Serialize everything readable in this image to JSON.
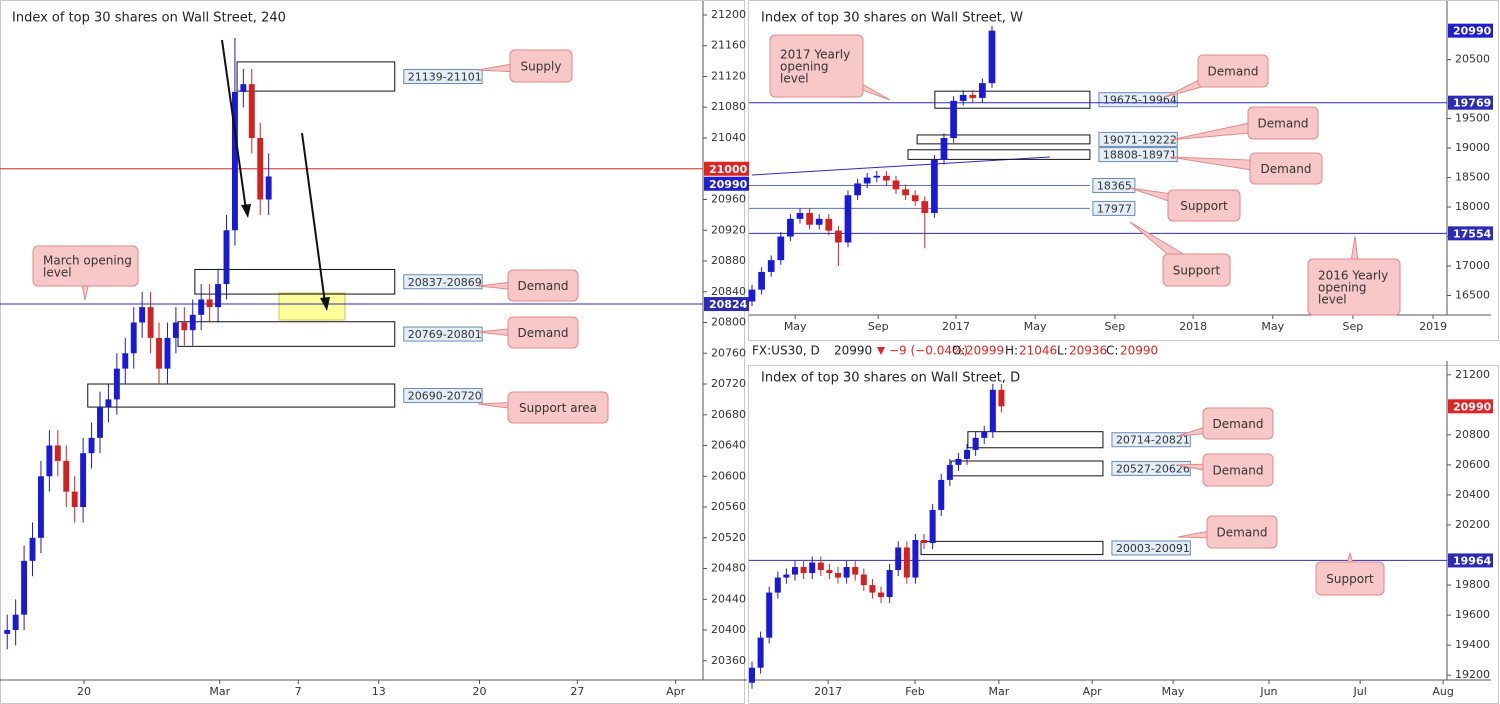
{
  "chart_data": [
    {
      "type": "candlestick",
      "title": "Index of top 30 shares on Wall Street, 240",
      "x": [
        1,
        3,
        5,
        7,
        9,
        11,
        13,
        15,
        17,
        19,
        21,
        23,
        25,
        27,
        29,
        31,
        33,
        35,
        37,
        39,
        41,
        43,
        45,
        47,
        49,
        51,
        53,
        55,
        57,
        59,
        61,
        63
      ],
      "open": [
        20395,
        20400,
        20420,
        20490,
        20520,
        20600,
        20640,
        20620,
        20580,
        20560,
        20630,
        20650,
        20690,
        20700,
        20740,
        20760,
        20800,
        20820,
        20780,
        20740,
        20780,
        20800,
        20790,
        20810,
        20830,
        20820,
        20850,
        20920,
        21100,
        21110,
        21040,
        20960
      ],
      "high": [
        20420,
        20440,
        20510,
        20540,
        20620,
        20660,
        20660,
        20640,
        20600,
        20650,
        20670,
        20710,
        20720,
        20760,
        20780,
        20820,
        20840,
        20840,
        20800,
        20800,
        20820,
        20820,
        20830,
        20850,
        20850,
        20870,
        20940,
        21170,
        21130,
        21130,
        21060,
        21020
      ],
      "low": [
        20375,
        20380,
        20400,
        20470,
        20500,
        20580,
        20600,
        20560,
        20540,
        20540,
        20610,
        20630,
        20670,
        20680,
        20720,
        20740,
        20780,
        20760,
        20720,
        20720,
        20760,
        20770,
        20770,
        20790,
        20800,
        20800,
        20830,
        20900,
        21080,
        21020,
        20940,
        20940
      ],
      "close": [
        20400,
        20420,
        20490,
        20520,
        20600,
        20640,
        20620,
        20580,
        20560,
        20630,
        20650,
        20690,
        20700,
        20740,
        20760,
        20800,
        20820,
        20780,
        20740,
        20780,
        20800,
        20790,
        20810,
        20830,
        20820,
        20850,
        20920,
        21100,
        21110,
        21040,
        20960,
        20990
      ],
      "up_color": "#1a1ad6",
      "down_color": "#d32020",
      "xlim": [
        0,
        166
      ],
      "xticks": [
        {
          "value": 19.2,
          "label": "20"
        },
        {
          "value": 51.4,
          "label": "Mar"
        },
        {
          "value": 70,
          "label": "7"
        },
        {
          "value": 89.1,
          "label": "13"
        },
        {
          "value": 113,
          "label": "20"
        },
        {
          "value": 136.2,
          "label": "27"
        },
        {
          "value": 159.5,
          "label": "Apr"
        }
      ],
      "ylim": [
        20335,
        21213
      ],
      "yticks": [
        20360,
        20400,
        20440,
        20480,
        20520,
        20560,
        20600,
        20640,
        20680,
        20720,
        20760,
        20800,
        20840,
        20880,
        20920,
        20960,
        21040,
        21080,
        21120,
        21160,
        21200
      ],
      "zones": [
        {
          "label": "21139-21101",
          "low": 21101,
          "high": 21139,
          "from": 55.5,
          "to": 92.9
        },
        {
          "label": "20837-20869",
          "low": 20837,
          "high": 20869,
          "from": 45.5,
          "to": 92.9
        },
        {
          "label": "20769-20801",
          "low": 20769,
          "high": 20801,
          "from": 41.5,
          "to": 92.9
        },
        {
          "label": "20690-20720",
          "low": 20690,
          "high": 20720,
          "from": 20.1,
          "to": 92.9
        }
      ],
      "levels": [
        {
          "value": 21000,
          "color": "#e02424",
          "line": true,
          "axis_label": true
        },
        {
          "value": 20990,
          "color": "#1f1fd0",
          "line": false,
          "axis_label": true
        },
        {
          "value": 20824,
          "color": "#2b2bb8",
          "line": true,
          "axis_label": true
        }
      ],
      "callouts": [
        {
          "text": [
            "Supply"
          ]
        },
        {
          "text": [
            "Demand"
          ]
        },
        {
          "text": [
            "Demand"
          ]
        },
        {
          "text": [
            "Support area"
          ]
        },
        {
          "text": [
            "March opening",
            "level"
          ]
        }
      ]
    },
    {
      "type": "candlestick",
      "title": "Index of top 30 shares on Wall Street, W",
      "x": [
        0,
        2,
        4,
        6,
        8,
        10,
        12,
        14,
        16,
        18,
        20,
        22,
        24,
        26,
        28,
        30,
        32,
        34,
        36,
        38,
        40,
        42,
        44,
        46,
        48,
        50
      ],
      "open": [
        16400,
        16600,
        16900,
        17100,
        17500,
        17800,
        17900,
        17700,
        17800,
        17600,
        17400,
        18200,
        18400,
        18500,
        18530,
        18450,
        18300,
        18200,
        18100,
        17900,
        18800,
        19170,
        19800,
        19900,
        19850,
        20100
      ],
      "high": [
        16680,
        16980,
        17180,
        17580,
        17880,
        17980,
        17980,
        17880,
        17880,
        17680,
        18280,
        18480,
        18580,
        18610,
        18610,
        18530,
        18380,
        18280,
        18180,
        18880,
        19250,
        19880,
        19980,
        19980,
        20180,
        21070
      ],
      "low": [
        16320,
        16520,
        16820,
        17020,
        17420,
        17720,
        17620,
        17620,
        17520,
        17000,
        17320,
        18120,
        18320,
        18420,
        18370,
        18220,
        18120,
        18020,
        17300,
        17820,
        18720,
        19090,
        19720,
        19770,
        19770,
        20020
      ],
      "close": [
        16600,
        16900,
        17100,
        17500,
        17800,
        17900,
        17700,
        17800,
        17600,
        17400,
        18200,
        18400,
        18500,
        18530,
        18450,
        18300,
        18200,
        18100,
        17900,
        18800,
        19170,
        19800,
        19900,
        19850,
        20100,
        20990
      ],
      "up_color": "#1a1ad6",
      "down_color": "#d32020",
      "xlim": [
        0,
        144.8
      ],
      "xticks": [
        {
          "value": 9,
          "label": "May"
        },
        {
          "value": 26.3,
          "label": "Sep"
        },
        {
          "value": 42.5,
          "label": "2017"
        },
        {
          "value": 59,
          "label": "May"
        },
        {
          "value": 75.6,
          "label": "Sep"
        },
        {
          "value": 91.9,
          "label": "2018"
        },
        {
          "value": 108.5,
          "label": "May"
        },
        {
          "value": 125.2,
          "label": "Sep"
        },
        {
          "value": 141.9,
          "label": "2019"
        }
      ],
      "ylim": [
        16170,
        21425
      ],
      "yticks": [
        16500,
        17000,
        17500,
        18000,
        18500,
        19000,
        19500,
        20500
      ],
      "zones": [
        {
          "label": "19675-19964",
          "low": 19675,
          "high": 19964,
          "from": 38.1,
          "to": 70.4
        },
        {
          "label": "19071-19222",
          "low": 19071,
          "high": 19222,
          "from": 34.4,
          "to": 70.4
        },
        {
          "label": "18808-18971",
          "low": 18808,
          "high": 18971,
          "from": 32.5,
          "to": 70.4
        }
      ],
      "levels": [
        {
          "value": 20990,
          "color": "#1f1fd0",
          "line": false,
          "axis_label": true
        },
        {
          "value": 19769,
          "color": "#2b2bb8",
          "line": true,
          "axis_label": true
        },
        {
          "value": 18365,
          "color": "#5a6fd8",
          "line": true,
          "to": 70.4,
          "boxed": true
        },
        {
          "value": 17977,
          "color": "#5a6fd8",
          "line": true,
          "to": 70.4,
          "boxed": true
        },
        {
          "value": 17554,
          "color": "#2b2bb8",
          "line": true,
          "axis_label": true
        }
      ],
      "callouts": [
        {
          "text": [
            "2017 Yearly",
            "opening",
            "level"
          ]
        },
        {
          "text": [
            "Demand"
          ]
        },
        {
          "text": [
            "Demand"
          ]
        },
        {
          "text": [
            "Demand"
          ]
        },
        {
          "text": [
            "Support"
          ]
        },
        {
          "text": [
            "Support"
          ]
        },
        {
          "text": [
            "2016 Yearly",
            "opening",
            "level"
          ]
        }
      ]
    },
    {
      "type": "candlestick",
      "title": "Index of top 30 shares on Wall Street, D",
      "header": {
        "symbol": "FX:US30, D",
        "last": 20990,
        "change": "−9 (−0.04%)",
        "o_label": "O:",
        "o": 20999,
        "h_label": "H:",
        "h": 21046,
        "l_label": "L:",
        "l": 20936,
        "c_label": "C:",
        "c": 20990
      },
      "x": [
        0,
        2,
        4,
        6,
        8,
        10,
        12,
        14,
        16,
        18,
        20,
        22,
        24,
        26,
        28,
        30,
        32,
        34,
        36,
        38,
        40,
        42,
        44,
        46,
        48,
        50,
        52,
        54,
        56,
        58
      ],
      "open": [
        19150,
        19250,
        19450,
        19750,
        19850,
        19870,
        19920,
        19880,
        19950,
        19900,
        19880,
        19850,
        19920,
        19870,
        19800,
        19750,
        19720,
        19900,
        20050,
        19850,
        20100,
        20080,
        20300,
        20500,
        20600,
        20640,
        20700,
        20780,
        20820,
        21100
      ],
      "high": [
        19290,
        19490,
        19790,
        19890,
        19910,
        19960,
        19960,
        19990,
        19990,
        19940,
        19920,
        19960,
        19960,
        19910,
        19840,
        19790,
        19940,
        20090,
        20090,
        20140,
        20140,
        20340,
        20540,
        20640,
        20680,
        20740,
        20820,
        20860,
        21140,
        21140
      ],
      "low": [
        19110,
        19210,
        19410,
        19710,
        19810,
        19830,
        19840,
        19840,
        19860,
        19840,
        19810,
        19810,
        19830,
        19760,
        19710,
        19680,
        19680,
        19860,
        19810,
        19810,
        20040,
        20040,
        20260,
        20460,
        20560,
        20600,
        20660,
        20740,
        20780,
        20950
      ],
      "close": [
        19250,
        19450,
        19750,
        19850,
        19870,
        19920,
        19880,
        19950,
        19900,
        19880,
        19850,
        19920,
        19870,
        19800,
        19750,
        19720,
        19900,
        20050,
        19850,
        20100,
        20080,
        20300,
        20500,
        20600,
        20640,
        20700,
        20780,
        20820,
        21100,
        20990
      ],
      "up_color": "#1a1ad6",
      "down_color": "#d32020",
      "xlim": [
        0,
        161.6
      ],
      "xticks": [
        {
          "value": 17.7,
          "label": "2017"
        },
        {
          "value": 37.9,
          "label": "Feb"
        },
        {
          "value": 57.4,
          "label": "Mar"
        },
        {
          "value": 79.1,
          "label": "Apr"
        },
        {
          "value": 97.9,
          "label": "May"
        },
        {
          "value": 120.2,
          "label": "Jun"
        },
        {
          "value": 141.4,
          "label": "Jul"
        },
        {
          "value": 160.7,
          "label": "Aug"
        }
      ],
      "ylim": [
        19168,
        21265
      ],
      "yticks": [
        19200,
        19400,
        19600,
        19800,
        20200,
        20400,
        20600,
        20800,
        21200
      ],
      "zones": [
        {
          "label": "20714-20821",
          "low": 20714,
          "high": 20821,
          "from": 50.2,
          "to": 81.6
        },
        {
          "label": "20527-20626",
          "low": 20527,
          "high": 20626,
          "from": 46.3,
          "to": 81.6
        },
        {
          "label": "20003-20091",
          "low": 20003,
          "high": 20091,
          "from": 39.3,
          "to": 81.6
        }
      ],
      "levels": [
        {
          "value": 20990,
          "color": "#e02424",
          "line": false,
          "axis_label": true
        },
        {
          "value": 19964,
          "color": "#2b2bb8",
          "line": true,
          "axis_label": true
        }
      ],
      "callouts": [
        {
          "text": [
            "Demand"
          ]
        },
        {
          "text": [
            "Demand"
          ]
        },
        {
          "text": [
            "Demand"
          ]
        },
        {
          "text": [
            "Support"
          ]
        }
      ]
    }
  ]
}
